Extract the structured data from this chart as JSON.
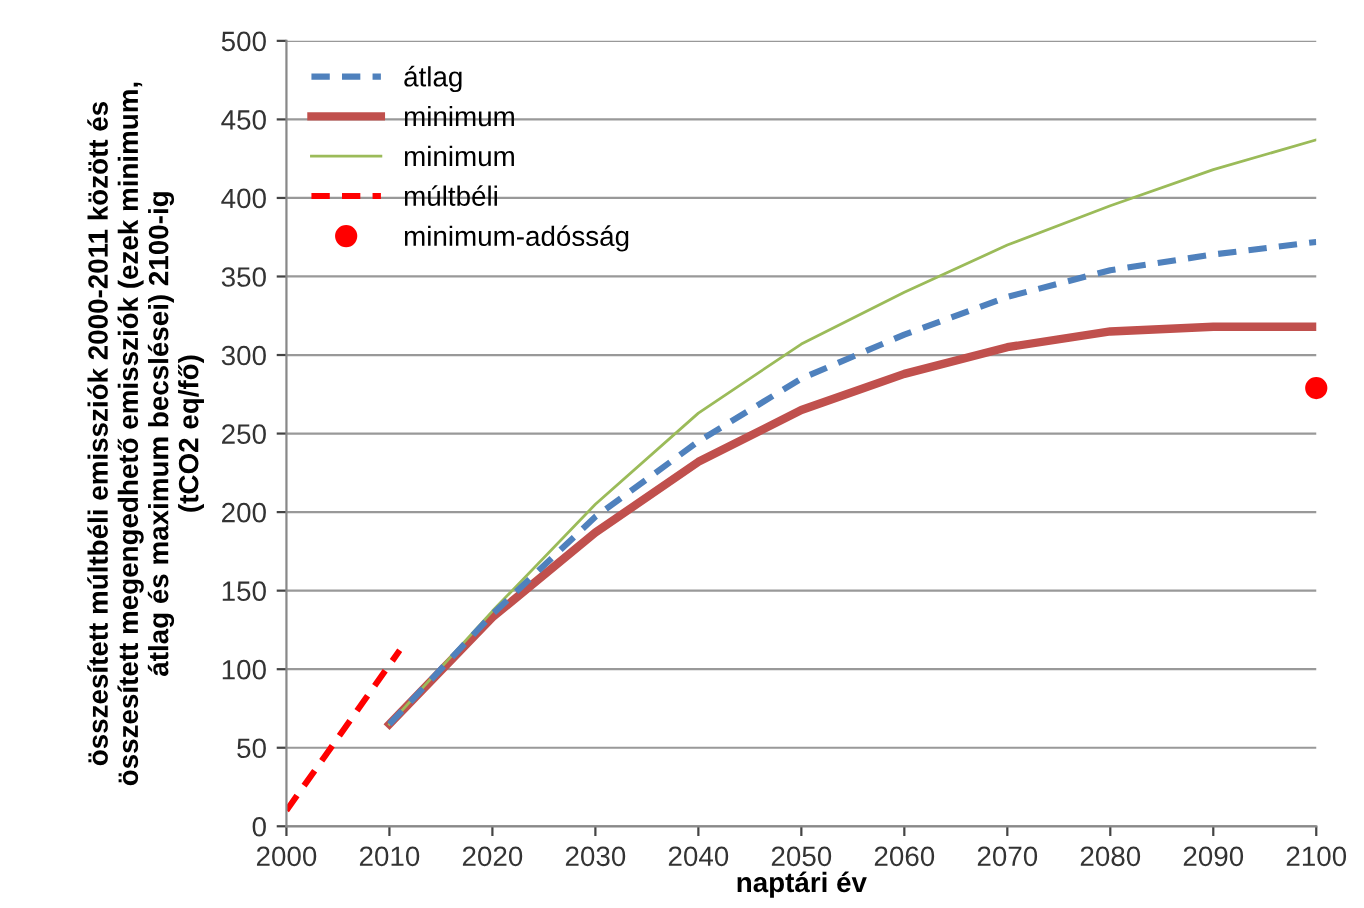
{
  "chart_data": {
    "type": "line",
    "xlabel": "naptári év",
    "ylabel": "összesített múltbéli emissziók 2000-2011 között és\nösszesített megengedhető emissziók (ezek minimum,\nátlag és maximum becslései) 2100-ig\n(tCO2 eq/fő)",
    "xlim": [
      2000,
      2100
    ],
    "xticks": [
      2000,
      2010,
      2020,
      2030,
      2040,
      2050,
      2060,
      2070,
      2080,
      2090,
      2100
    ],
    "ylim": [
      0,
      500
    ],
    "yticks": [
      0,
      50,
      100,
      150,
      200,
      250,
      300,
      350,
      400,
      450,
      500
    ],
    "grid": "y",
    "legend": "top left",
    "series": [
      {
        "name": "átlag",
        "color": "#4f81bd",
        "line_style": "dashed",
        "x": [
          2010,
          2020,
          2030,
          2040,
          2050,
          2060,
          2070,
          2080,
          2090,
          2100
        ],
        "values": [
          65,
          135,
          197,
          245,
          285,
          313,
          337,
          354,
          364,
          372
        ]
      },
      {
        "name": "minimum",
        "color": "#c0504d",
        "line_style": "solid",
        "x": [
          2010,
          2020,
          2030,
          2040,
          2050,
          2060,
          2070,
          2080,
          2090,
          2100
        ],
        "values": [
          65,
          133,
          187,
          232,
          265,
          288,
          305,
          315,
          318,
          318
        ]
      },
      {
        "name": "minimum",
        "color": "#9bbb59",
        "line_style": "solid",
        "x": [
          2010,
          2020,
          2030,
          2040,
          2050,
          2060,
          2070,
          2080,
          2090,
          2100
        ],
        "values": [
          65,
          137,
          205,
          263,
          307,
          340,
          370,
          395,
          418,
          437
        ]
      },
      {
        "name": "múltbéli",
        "color": "#ff0000",
        "line_style": "dashed",
        "x": [
          2000,
          2011
        ],
        "values": [
          10,
          112
        ]
      },
      {
        "name": "minimum-adósság",
        "type": "scatter",
        "color": "#ff0000",
        "marker": "circle",
        "x": [
          2100
        ],
        "values": [
          279
        ]
      }
    ]
  }
}
